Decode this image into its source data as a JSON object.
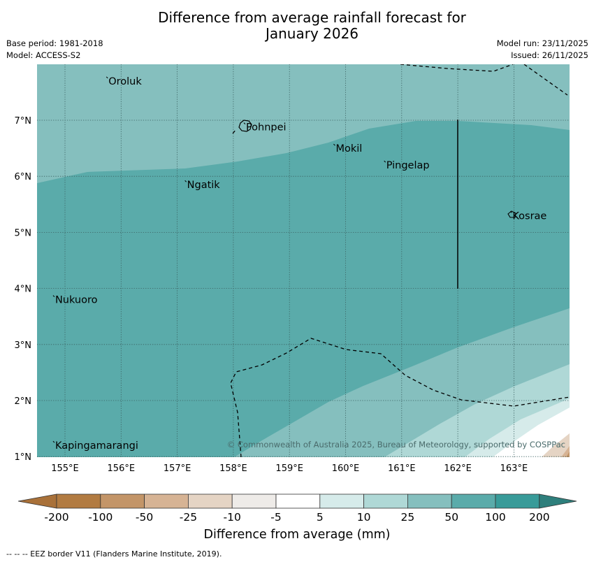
{
  "title": {
    "line1": "Difference from average rainfall forecast for",
    "line2": "January 2026"
  },
  "meta": {
    "base_period": "Base period: 1981-2018",
    "model": "Model: ACCESS-S2",
    "model_run": "Model run: 23/11/2025",
    "issued": "Issued: 26/11/2025"
  },
  "map": {
    "lat_labels": [
      "7°N",
      "6°N",
      "5°N",
      "4°N",
      "3°N",
      "2°N",
      "1°N"
    ],
    "lon_labels": [
      "155°E",
      "156°E",
      "157°E",
      "158°E",
      "159°E",
      "160°E",
      "161°E",
      "162°E",
      "163°E"
    ],
    "places": [
      {
        "name": "Oroluk",
        "lon": 155.75,
        "lat": 7.7
      },
      {
        "name": "Pohnpei",
        "lon": 158.2,
        "lat": 6.88
      },
      {
        "name": "Mokil",
        "lon": 159.8,
        "lat": 6.5
      },
      {
        "name": "Pingelap",
        "lon": 160.7,
        "lat": 6.2
      },
      {
        "name": "Ngatik",
        "lon": 157.15,
        "lat": 5.85
      },
      {
        "name": "Kosrae",
        "lon": 162.95,
        "lat": 5.3
      },
      {
        "name": "Nukuoro",
        "lon": 154.8,
        "lat": 3.8
      },
      {
        "name": "Kapingamarangi",
        "lon": 154.8,
        "lat": 1.2
      }
    ],
    "copyright": "© Commonwealth of Australia 2025, Bureau of Meteorology, supported by COSPPac"
  },
  "colorbar": {
    "labels": [
      "-200",
      "-100",
      "-50",
      "-25",
      "-10",
      "-5",
      "5",
      "10",
      "25",
      "50",
      "100",
      "200"
    ],
    "colors": [
      "#a97139",
      "#b27b41",
      "#c39568",
      "#d6b394",
      "#e5d4c4",
      "#eeebe8",
      "#ffffff",
      "#d6ebea",
      "#afd8d6",
      "#85bfbe",
      "#5aabaa",
      "#389b99",
      "#2e7f7c"
    ],
    "title": "Difference from average (mm)"
  },
  "footnote": "--  --  -- EEZ border V11 (Flanders Marine Institute, 2019)."
}
